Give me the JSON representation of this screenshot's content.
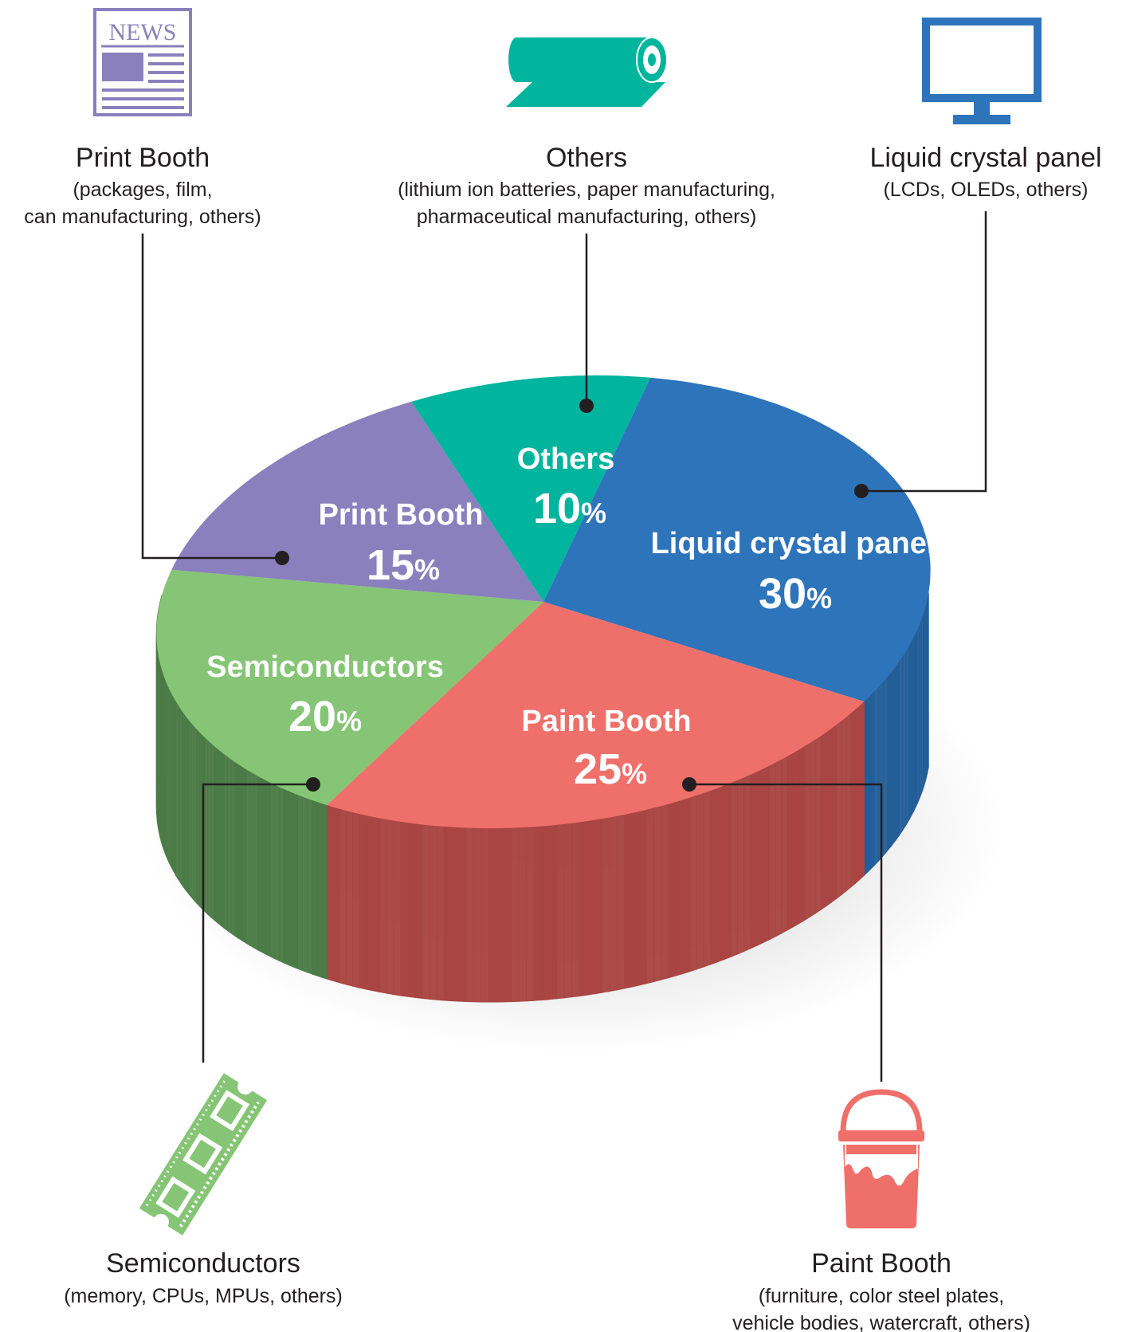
{
  "chart_data": {
    "type": "pie",
    "title": "",
    "unit": "%",
    "slices": [
      {
        "key": "lcd",
        "label": "Liquid crystal panel",
        "value": 30,
        "percent_sign": "%",
        "description": "(LCDs, OLEDs, others)",
        "color": "#2e74bb",
        "side_color": "#235e98",
        "icon": "monitor-icon"
      },
      {
        "key": "paint",
        "label": "Paint Booth",
        "value": 25,
        "percent_sign": "%",
        "description_lines": [
          "(furniture, color steel plates,",
          "vehicle bodies, watercraft, others)"
        ],
        "color": "#ef6f6a",
        "side_color": "#a94542",
        "icon": "paint-bucket-icon"
      },
      {
        "key": "semi",
        "label": "Semiconductors",
        "value": 20,
        "percent_sign": "%",
        "description": "(memory, CPUs, MPUs, others)",
        "color": "#85c575",
        "side_color": "#4b7b46",
        "icon": "memory-chip-icon"
      },
      {
        "key": "print",
        "label": "Print Booth",
        "value": 15,
        "percent_sign": "%",
        "description_lines": [
          "(packages, film,",
          "can manufacturing, others)"
        ],
        "color": "#8a80bd",
        "side_color": "#6b6396",
        "icon": "newspaper-icon",
        "icon_text": "NEWS"
      },
      {
        "key": "others",
        "label": "Others",
        "value": 10,
        "percent_sign": "%",
        "description_lines": [
          "(lithium ion batteries, paper manufacturing,",
          "pharmaceutical manufacturing, others)"
        ],
        "color": "#00b49d",
        "side_color": "#008a78",
        "icon": "film-roll-icon"
      }
    ],
    "legend": "none",
    "style": "3d-pie-with-callouts"
  }
}
